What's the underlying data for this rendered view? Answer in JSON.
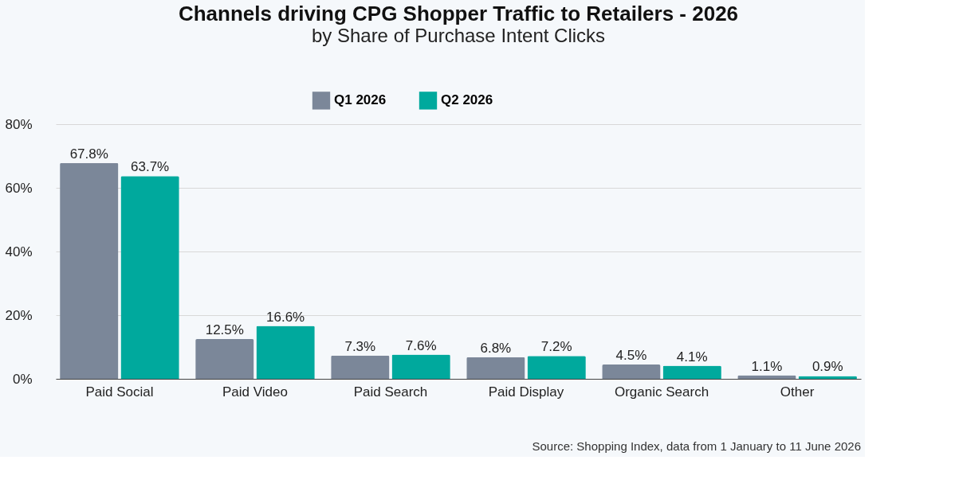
{
  "chart_data": {
    "type": "bar",
    "title": "Channels driving CPG Shopper Traffic to Retailers - 2026",
    "subtitle": "by Share of Purchase Intent Clicks",
    "categories": [
      "Paid Social",
      "Paid Video",
      "Paid Search",
      "Paid Display",
      "Organic Search",
      "Other"
    ],
    "series": [
      {
        "name": "Q1 2026",
        "color": "#7b8799",
        "values": [
          67.8,
          12.5,
          7.3,
          6.8,
          4.5,
          1.1
        ],
        "value_labels": [
          "67.8%",
          "12.5%",
          "7.3%",
          "6.8%",
          "4.5%",
          "1.1%"
        ]
      },
      {
        "name": "Q2 2026",
        "color": "#00a99d",
        "values": [
          63.7,
          16.6,
          7.6,
          7.2,
          4.1,
          0.9
        ],
        "value_labels": [
          "63.7%",
          "16.6%",
          "7.6%",
          "7.2%",
          "4.1%",
          "0.9%"
        ]
      }
    ],
    "ylim": [
      0,
      80
    ],
    "yticks": [
      {
        "value": 0,
        "label": "0%"
      },
      {
        "value": 20,
        "label": "20%"
      },
      {
        "value": 40,
        "label": "40%"
      },
      {
        "value": 60,
        "label": "60%"
      },
      {
        "value": 80,
        "label": "80%"
      }
    ],
    "grid": "y",
    "legend": "top",
    "annotations": [
      "Source: Shopping Index, data from 1 January to 11 June 2026"
    ]
  }
}
